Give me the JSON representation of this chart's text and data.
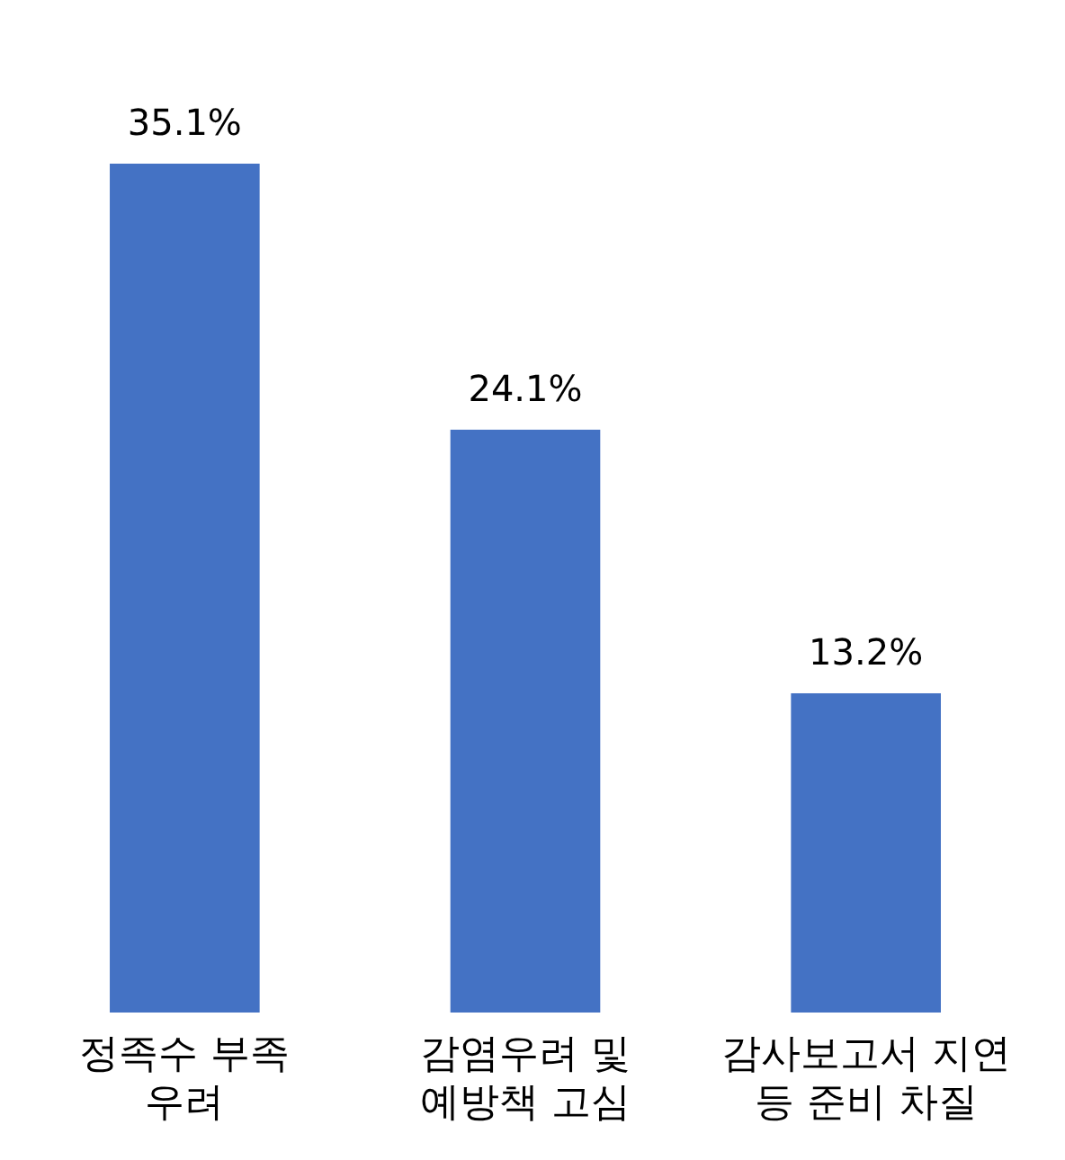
{
  "chart_data": {
    "type": "bar",
    "categories": [
      "정족수 부족 우려",
      "감염우려 및 예방책 고심",
      "감사보고서 지연 등 준비 차질"
    ],
    "values": [
      35.1,
      24.1,
      13.2
    ],
    "value_labels": [
      "35.1%",
      "24.1%",
      "13.2%"
    ],
    "color": "#4472c4"
  }
}
